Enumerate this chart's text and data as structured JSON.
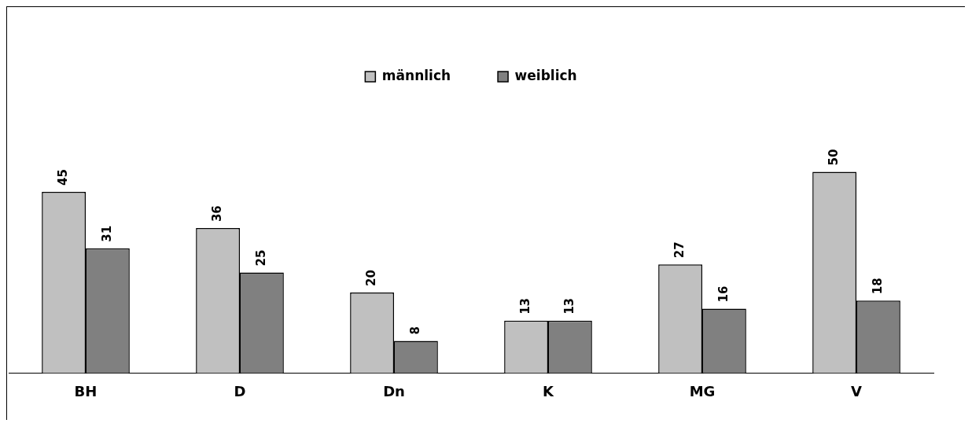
{
  "chart_data": {
    "type": "bar",
    "categories": [
      "BH",
      "D",
      "Dn",
      "K",
      "MG",
      "V"
    ],
    "series": [
      {
        "name": "männlich",
        "color": "#c0c0c0",
        "values": [
          45,
          36,
          20,
          13,
          27,
          50
        ]
      },
      {
        "name": "weiblich",
        "color": "#808080",
        "values": [
          31,
          25,
          8,
          13,
          16,
          18
        ]
      }
    ],
    "data_labels": true,
    "legend": "top",
    "grid": false
  }
}
